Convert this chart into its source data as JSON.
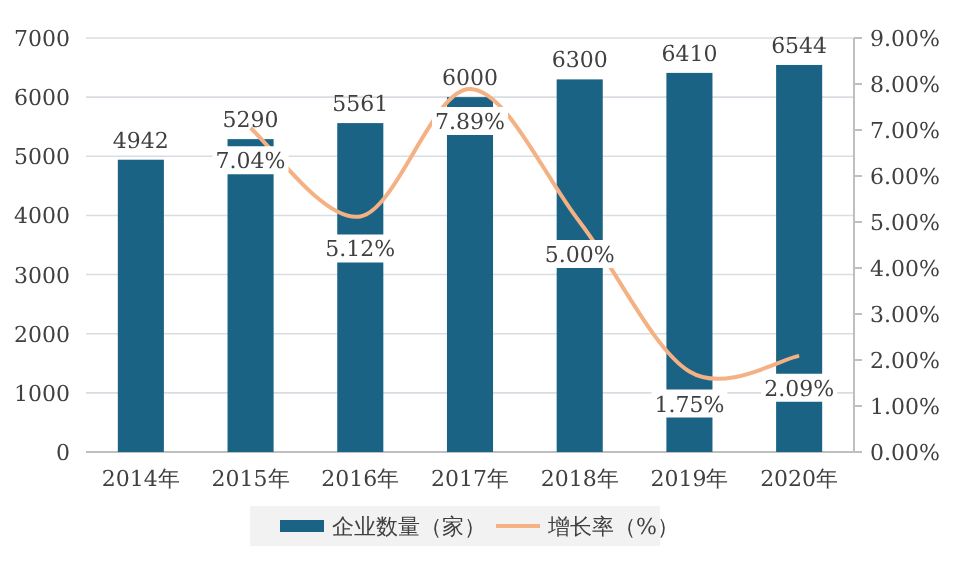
{
  "chart_data": {
    "type": "bar",
    "categories": [
      "2014年",
      "2015年",
      "2016年",
      "2017年",
      "2018年",
      "2019年",
      "2020年"
    ],
    "series": [
      {
        "name": "企业数量（家）",
        "color": "#1b6384",
        "values": [
          4942,
          5290,
          5561,
          6000,
          6300,
          6410,
          6544
        ],
        "value_labels": [
          "4942",
          "5290",
          "5561",
          "6000",
          "6300",
          "6410",
          "6544"
        ]
      },
      {
        "name": "增长率（%）",
        "type": "line",
        "axis": "y2",
        "color": "#f4b183",
        "values": [
          null,
          7.04,
          5.12,
          7.89,
          5.0,
          1.75,
          2.09
        ],
        "value_labels": [
          null,
          "7.04%",
          "5.12%",
          "7.89%",
          "5.00%",
          "1.75%",
          "2.09%"
        ]
      }
    ],
    "ylim": [
      0,
      7000
    ],
    "yticks": [
      0,
      1000,
      2000,
      3000,
      4000,
      5000,
      6000,
      7000
    ],
    "y2lim": [
      0,
      9
    ],
    "y2ticks": [
      {
        "value": 0,
        "label": "0.00%"
      },
      {
        "value": 1,
        "label": "1.00%"
      },
      {
        "value": 2,
        "label": "2.00%"
      },
      {
        "value": 3,
        "label": "3.00%"
      },
      {
        "value": 4,
        "label": "4.00%"
      },
      {
        "value": 5,
        "label": "5.00%"
      },
      {
        "value": 6,
        "label": "6.00%"
      },
      {
        "value": 7,
        "label": "7.00%"
      },
      {
        "value": 8,
        "label": "8.00%"
      },
      {
        "value": 9,
        "label": "9.00%"
      }
    ],
    "grid": "y",
    "legend": "bottom"
  }
}
